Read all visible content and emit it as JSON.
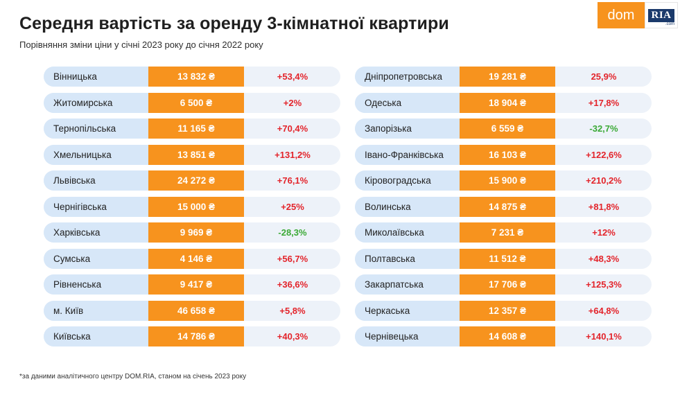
{
  "header": {
    "title": "Середня вартість за оренду 3-кімнатної квартири",
    "subtitle": "Порівняння зміни ціни у січні 2023 року до січня 2022 року"
  },
  "logo": {
    "dom": "dom",
    "ria": "RIA",
    "com": ".com"
  },
  "colors": {
    "price_bg": "#f7931e",
    "region_bg": "#d7e7f8",
    "change_bg": "#edf2f9",
    "positive": "#e3242b",
    "negative": "#3aa935"
  },
  "chart_data": {
    "type": "table",
    "columns": [
      "region",
      "price",
      "change"
    ],
    "rows_left": [
      {
        "region": "Вінницька",
        "price": "13 832 ₴",
        "change": "+53,4%",
        "value": 13832,
        "change_pct": 53.4
      },
      {
        "region": "Житомирська",
        "price": "6 500 ₴",
        "change": "+2%",
        "value": 6500,
        "change_pct": 2
      },
      {
        "region": "Тернопільська",
        "price": "11 165 ₴",
        "change": "+70,4%",
        "value": 11165,
        "change_pct": 70.4
      },
      {
        "region": "Хмельницька",
        "price": "13 851 ₴",
        "change": "+131,2%",
        "value": 13851,
        "change_pct": 131.2
      },
      {
        "region": "Львівська",
        "price": "24 272 ₴",
        "change": "+76,1%",
        "value": 24272,
        "change_pct": 76.1
      },
      {
        "region": "Чернігівська",
        "price": "15 000 ₴",
        "change": "+25%",
        "value": 15000,
        "change_pct": 25
      },
      {
        "region": "Харківська",
        "price": "9 969 ₴",
        "change": "-28,3%",
        "value": 9969,
        "change_pct": -28.3
      },
      {
        "region": "Сумська",
        "price": "4 146 ₴",
        "change": "+56,7%",
        "value": 4146,
        "change_pct": 56.7
      },
      {
        "region": "Рівненська",
        "price": "9 417 ₴",
        "change": "+36,6%",
        "value": 9417,
        "change_pct": 36.6
      },
      {
        "region": "м. Київ",
        "price": "46 658 ₴",
        "change": "+5,8%",
        "value": 46658,
        "change_pct": 5.8
      },
      {
        "region": "Київська",
        "price": "14 786 ₴",
        "change": "+40,3%",
        "value": 14786,
        "change_pct": 40.3
      }
    ],
    "rows_right": [
      {
        "region": "Дніпропетровська",
        "price": "19 281 ₴",
        "change": "25,9%",
        "value": 19281,
        "change_pct": 25.9
      },
      {
        "region": "Одеська",
        "price": "18 904 ₴",
        "change": "+17,8%",
        "value": 18904,
        "change_pct": 17.8
      },
      {
        "region": "Запорізька",
        "price": "6 559 ₴",
        "change": "-32,7%",
        "value": 6559,
        "change_pct": -32.7
      },
      {
        "region": "Івано-Франківська",
        "price": "16 103 ₴",
        "change": "+122,6%",
        "value": 16103,
        "change_pct": 122.6
      },
      {
        "region": "Кіровоградська",
        "price": "15 900 ₴",
        "change": "+210,2%",
        "value": 15900,
        "change_pct": 210.2
      },
      {
        "region": "Волинська",
        "price": "14 875 ₴",
        "change": "+81,8%",
        "value": 14875,
        "change_pct": 81.8
      },
      {
        "region": "Миколаївська",
        "price": "7 231 ₴",
        "change": "+12%",
        "value": 7231,
        "change_pct": 12
      },
      {
        "region": "Полтавська",
        "price": "11 512 ₴",
        "change": "+48,3%",
        "value": 11512,
        "change_pct": 48.3
      },
      {
        "region": "Закарпатська",
        "price": "17 706 ₴",
        "change": "+125,3%",
        "value": 17706,
        "change_pct": 125.3
      },
      {
        "region": "Черкаська",
        "price": "12 357 ₴",
        "change": "+64,8%",
        "value": 12357,
        "change_pct": 64.8
      },
      {
        "region": "Чернівецька",
        "price": "14 608 ₴",
        "change": "+140,1%",
        "value": 14608,
        "change_pct": 140.1
      }
    ]
  },
  "footnote": "*за даними аналітичного центру DOM.RIA, станом на січень 2023 року"
}
